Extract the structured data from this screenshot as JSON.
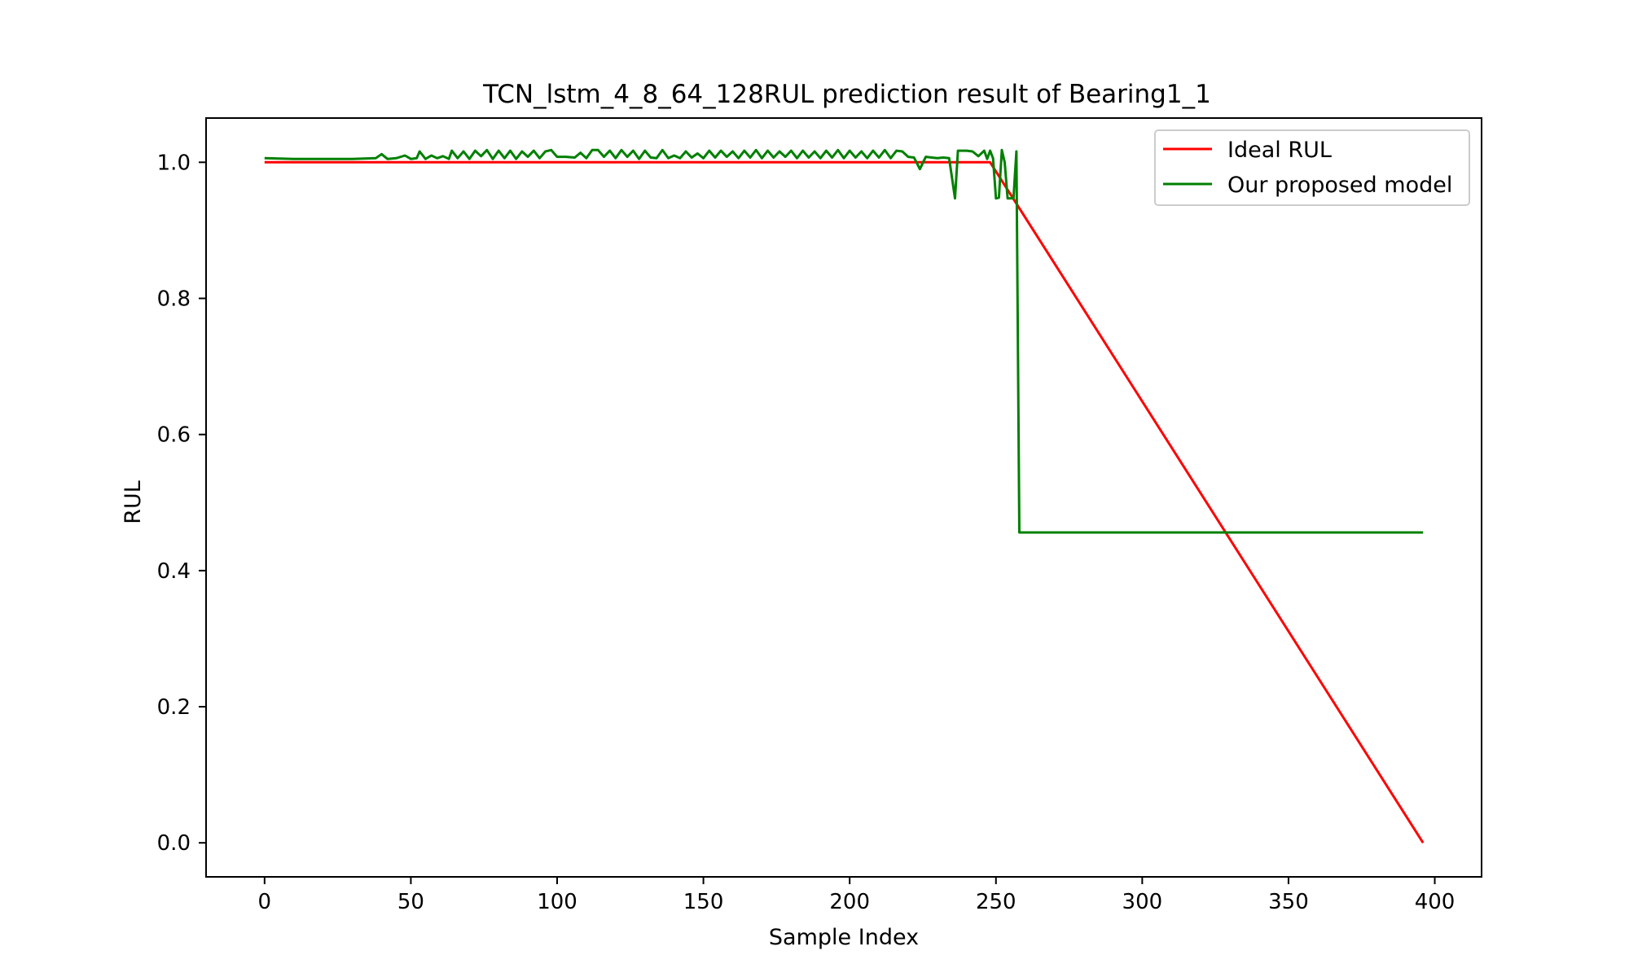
{
  "chart_data": {
    "type": "line",
    "title": "TCN_lstm_4_8_64_128RUL prediction result of Bearing1_1",
    "xlabel": "Sample Index",
    "ylabel": "RUL",
    "xlim": [
      -20,
      416
    ],
    "ylim": [
      -0.05,
      1.065
    ],
    "x_ticks": [
      0,
      50,
      100,
      150,
      200,
      250,
      300,
      350,
      400
    ],
    "y_ticks": [
      0.0,
      0.2,
      0.4,
      0.6,
      0.8,
      1.0
    ],
    "x_tick_labels": [
      "0",
      "50",
      "100",
      "150",
      "200",
      "250",
      "300",
      "350",
      "400"
    ],
    "y_tick_labels": [
      "0.0",
      "0.2",
      "0.4",
      "0.6",
      "0.8",
      "1.0"
    ],
    "grid": false,
    "legend_position": "upper right",
    "series": [
      {
        "name": "Ideal RUL",
        "color": "#ff0000",
        "points": [
          [
            0,
            1.0
          ],
          [
            248,
            1.0
          ],
          [
            396,
            0.0
          ]
        ]
      },
      {
        "name": "Our proposed model",
        "color": "#008000",
        "points": [
          [
            0,
            1.006
          ],
          [
            10,
            1.005
          ],
          [
            20,
            1.005
          ],
          [
            30,
            1.005
          ],
          [
            38,
            1.006
          ],
          [
            40,
            1.012
          ],
          [
            42,
            1.005
          ],
          [
            45,
            1.006
          ],
          [
            48,
            1.01
          ],
          [
            50,
            1.005
          ],
          [
            52,
            1.006
          ],
          [
            53,
            1.016
          ],
          [
            55,
            1.005
          ],
          [
            57,
            1.01
          ],
          [
            59,
            1.006
          ],
          [
            61,
            1.009
          ],
          [
            63,
            1.005
          ],
          [
            64,
            1.017
          ],
          [
            66,
            1.006
          ],
          [
            68,
            1.016
          ],
          [
            70,
            1.005
          ],
          [
            72,
            1.017
          ],
          [
            74,
            1.009
          ],
          [
            76,
            1.018
          ],
          [
            78,
            1.005
          ],
          [
            80,
            1.017
          ],
          [
            82,
            1.006
          ],
          [
            84,
            1.017
          ],
          [
            86,
            1.005
          ],
          [
            88,
            1.016
          ],
          [
            90,
            1.008
          ],
          [
            92,
            1.017
          ],
          [
            94,
            1.006
          ],
          [
            96,
            1.016
          ],
          [
            98,
            1.018
          ],
          [
            100,
            1.008
          ],
          [
            103,
            1.008
          ],
          [
            106,
            1.007
          ],
          [
            108,
            1.014
          ],
          [
            110,
            1.006
          ],
          [
            112,
            1.018
          ],
          [
            114,
            1.018
          ],
          [
            116,
            1.008
          ],
          [
            118,
            1.017
          ],
          [
            120,
            1.006
          ],
          [
            122,
            1.018
          ],
          [
            124,
            1.008
          ],
          [
            126,
            1.017
          ],
          [
            128,
            1.005
          ],
          [
            130,
            1.017
          ],
          [
            132,
            1.007
          ],
          [
            134,
            1.006
          ],
          [
            136,
            1.018
          ],
          [
            138,
            1.006
          ],
          [
            140,
            1.01
          ],
          [
            142,
            1.006
          ],
          [
            144,
            1.016
          ],
          [
            146,
            1.007
          ],
          [
            148,
            1.013
          ],
          [
            150,
            1.006
          ],
          [
            152,
            1.017
          ],
          [
            154,
            1.007
          ],
          [
            156,
            1.017
          ],
          [
            158,
            1.008
          ],
          [
            160,
            1.016
          ],
          [
            162,
            1.006
          ],
          [
            164,
            1.017
          ],
          [
            166,
            1.007
          ],
          [
            168,
            1.018
          ],
          [
            170,
            1.006
          ],
          [
            172,
            1.017
          ],
          [
            174,
            1.007
          ],
          [
            176,
            1.016
          ],
          [
            178,
            1.008
          ],
          [
            180,
            1.017
          ],
          [
            182,
            1.006
          ],
          [
            184,
            1.017
          ],
          [
            186,
            1.007
          ],
          [
            188,
            1.016
          ],
          [
            190,
            1.006
          ],
          [
            192,
            1.017
          ],
          [
            194,
            1.007
          ],
          [
            196,
            1.018
          ],
          [
            198,
            1.006
          ],
          [
            200,
            1.017
          ],
          [
            202,
            1.007
          ],
          [
            204,
            1.016
          ],
          [
            206,
            1.006
          ],
          [
            208,
            1.017
          ],
          [
            210,
            1.007
          ],
          [
            212,
            1.018
          ],
          [
            214,
            1.006
          ],
          [
            216,
            1.017
          ],
          [
            218,
            1.016
          ],
          [
            220,
            1.008
          ],
          [
            222,
            1.007
          ],
          [
            224,
            0.99
          ],
          [
            226,
            1.008
          ],
          [
            228,
            1.007
          ],
          [
            230,
            1.006
          ],
          [
            232,
            1.007
          ],
          [
            234,
            1.006
          ],
          [
            236,
            0.947
          ],
          [
            237,
            1.017
          ],
          [
            240,
            1.017
          ],
          [
            242,
            1.016
          ],
          [
            244,
            1.009
          ],
          [
            246,
            1.017
          ],
          [
            247,
            1.005
          ],
          [
            248,
            1.017
          ],
          [
            249,
            1.006
          ],
          [
            250,
            0.947
          ],
          [
            251,
            0.948
          ],
          [
            252,
            1.018
          ],
          [
            253,
            1.0
          ],
          [
            254,
            0.947
          ],
          [
            256,
            0.947
          ],
          [
            257,
            1.016
          ],
          [
            258,
            0.456
          ],
          [
            396,
            0.456
          ]
        ]
      }
    ]
  }
}
